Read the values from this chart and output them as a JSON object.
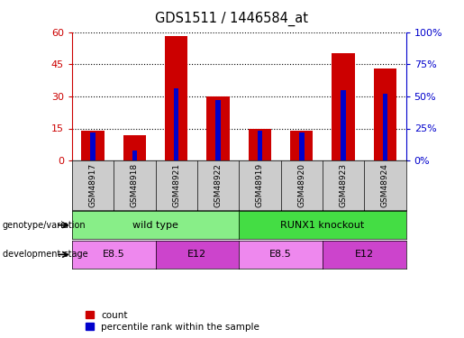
{
  "title": "GDS1511 / 1446584_at",
  "samples": [
    "GSM48917",
    "GSM48918",
    "GSM48921",
    "GSM48922",
    "GSM48919",
    "GSM48920",
    "GSM48923",
    "GSM48924"
  ],
  "counts": [
    14,
    12,
    58,
    30,
    15,
    14,
    50,
    43
  ],
  "percentiles": [
    22,
    8,
    56,
    47,
    23,
    22,
    55,
    52
  ],
  "ylim_left": [
    0,
    60
  ],
  "ylim_right": [
    0,
    100
  ],
  "yticks_left": [
    0,
    15,
    30,
    45,
    60
  ],
  "yticks_right": [
    0,
    25,
    50,
    75,
    100
  ],
  "ytick_labels_left": [
    "0",
    "15",
    "30",
    "45",
    "60"
  ],
  "ytick_labels_right": [
    "0%",
    "25%",
    "50%",
    "75%",
    "100%"
  ],
  "bar_color_red": "#cc0000",
  "bar_color_blue": "#0000cc",
  "bar_width": 0.55,
  "blue_bar_width": 0.12,
  "genotype_groups": [
    {
      "label": "wild type",
      "start": 0,
      "end": 3,
      "color": "#88ee88"
    },
    {
      "label": "RUNX1 knockout",
      "start": 4,
      "end": 7,
      "color": "#44dd44"
    }
  ],
  "dev_stage_groups": [
    {
      "label": "E8.5",
      "start": 0,
      "end": 1,
      "color": "#ee88ee"
    },
    {
      "label": "E12",
      "start": 2,
      "end": 3,
      "color": "#cc44cc"
    },
    {
      "label": "E8.5",
      "start": 4,
      "end": 5,
      "color": "#ee88ee"
    },
    {
      "label": "E12",
      "start": 6,
      "end": 7,
      "color": "#cc44cc"
    }
  ],
  "left_axis_color": "#cc0000",
  "right_axis_color": "#0000cc",
  "plot_bg_color": "#ffffff",
  "sample_label_bg": "#cccccc",
  "legend_count_label": "count",
  "legend_pct_label": "percentile rank within the sample",
  "geno_label": "genotype/variation",
  "dev_label": "development stage"
}
